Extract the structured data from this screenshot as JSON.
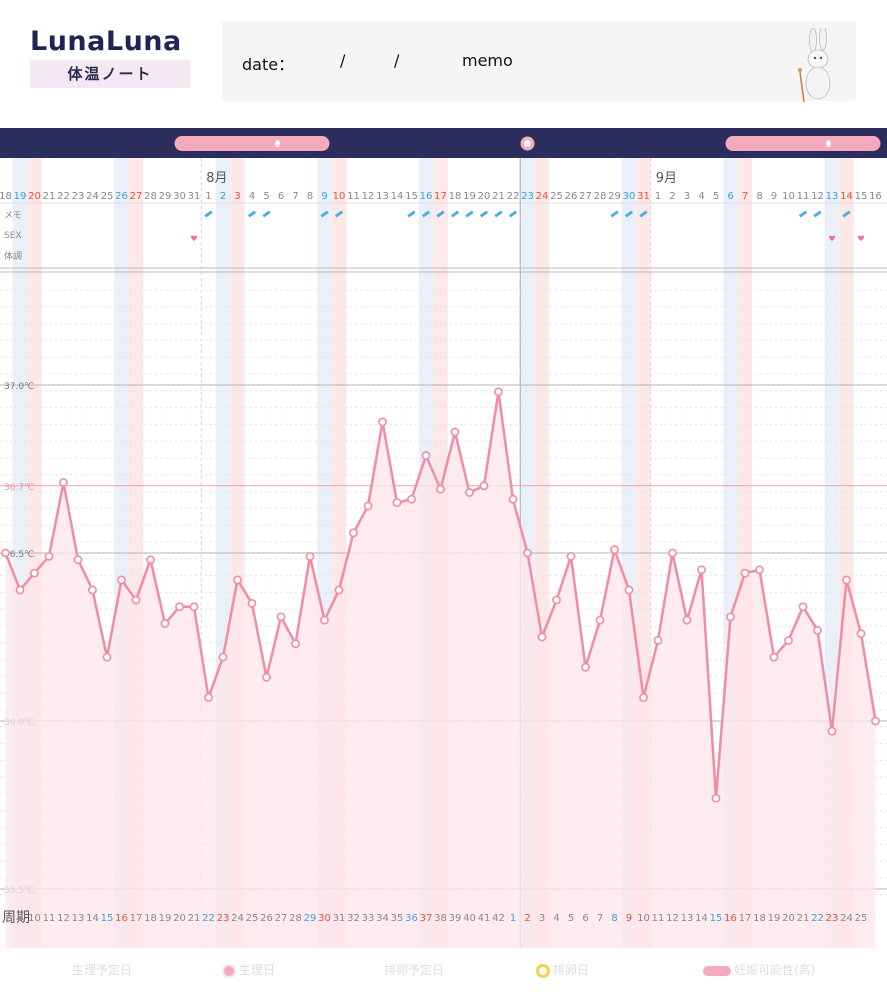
{
  "header": {
    "logo": "LunaLuna",
    "subtitle": "体温ノート",
    "date_label": "date：",
    "slash1": "/",
    "slash2": "/",
    "memo_label": "memo"
  },
  "colors": {
    "navy": "#2b2d5c",
    "line": "#f08ca4",
    "fill": "#ffe6eb",
    "blue_band": "#eaf0fa",
    "pink_band": "#fde8e8",
    "period_pill": "#f5a9bc",
    "blue_text": "#3aa0d8",
    "red_text": "#e0533a",
    "gray_text": "#888888",
    "memo_icon": "#4ab0e0",
    "heart": "#f06e96"
  },
  "chart_data": {
    "type": "line",
    "months": [
      "8月",
      "9月"
    ],
    "dates": [
      "18",
      "19",
      "20",
      "21",
      "22",
      "23",
      "24",
      "25",
      "26",
      "27",
      "28",
      "29",
      "30",
      "31",
      "1",
      "2",
      "3",
      "4",
      "5",
      "6",
      "7",
      "8",
      "9",
      "10",
      "11",
      "12",
      "13",
      "14",
      "15",
      "16",
      "17",
      "18",
      "19",
      "20",
      "21",
      "22",
      "23",
      "24",
      "25",
      "26",
      "27",
      "28",
      "29",
      "30",
      "31",
      "1",
      "2",
      "3",
      "4",
      "5",
      "6",
      "7",
      "8",
      "9",
      "10",
      "11",
      "12",
      "13",
      "14",
      "15",
      "16"
    ],
    "date_colors": [
      "g",
      "b",
      "r",
      "g",
      "g",
      "g",
      "g",
      "g",
      "b",
      "r",
      "g",
      "g",
      "g",
      "g",
      "g",
      "b",
      "r",
      "g",
      "g",
      "g",
      "g",
      "g",
      "b",
      "r",
      "g",
      "g",
      "g",
      "g",
      "g",
      "b",
      "r",
      "g",
      "g",
      "g",
      "g",
      "g",
      "b",
      "r",
      "g",
      "g",
      "g",
      "g",
      "g",
      "b",
      "r",
      "g",
      "g",
      "g",
      "g",
      "g",
      "b",
      "r",
      "g",
      "g",
      "g",
      "g",
      "g",
      "b",
      "r",
      "g",
      "g"
    ],
    "cycle_label": "周期",
    "cycle": [
      "",
      "9",
      "10",
      "11",
      "12",
      "13",
      "14",
      "15",
      "16",
      "17",
      "18",
      "19",
      "20",
      "21",
      "22",
      "23",
      "24",
      "25",
      "26",
      "27",
      "28",
      "29",
      "30",
      "31",
      "32",
      "33",
      "34",
      "35",
      "36",
      "37",
      "38",
      "39",
      "40",
      "41",
      "42",
      "1",
      "2",
      "3",
      "4",
      "5",
      "6",
      "7",
      "8",
      "9",
      "10",
      "11",
      "12",
      "13",
      "14",
      "15",
      "16",
      "17",
      "18",
      "19",
      "20",
      "21",
      "22",
      "23",
      "24",
      "25",
      ""
    ],
    "cycle_colors": [
      "g",
      "g",
      "g",
      "g",
      "g",
      "g",
      "g",
      "b",
      "r",
      "g",
      "g",
      "g",
      "g",
      "g",
      "b",
      "r",
      "g",
      "g",
      "g",
      "g",
      "g",
      "b",
      "r",
      "g",
      "g",
      "g",
      "g",
      "g",
      "b",
      "r",
      "g",
      "g",
      "g",
      "g",
      "g",
      "b",
      "r",
      "g",
      "g",
      "g",
      "g",
      "g",
      "b",
      "r",
      "g",
      "g",
      "g",
      "g",
      "g",
      "b",
      "r",
      "g",
      "g",
      "g",
      "g",
      "g",
      "b",
      "r",
      "g",
      "g",
      "g"
    ],
    "values": [
      36.5,
      36.39,
      36.44,
      36.49,
      36.71,
      36.48,
      36.39,
      36.19,
      36.42,
      36.36,
      36.48,
      36.29,
      36.34,
      36.34,
      36.07,
      36.19,
      36.42,
      36.35,
      36.13,
      36.31,
      36.23,
      36.49,
      36.3,
      36.39,
      36.56,
      36.64,
      36.89,
      36.65,
      36.66,
      36.79,
      36.69,
      36.86,
      36.68,
      36.7,
      36.98,
      36.66,
      36.5,
      36.25,
      36.36,
      36.49,
      36.16,
      36.3,
      36.51,
      36.39,
      36.07,
      36.24,
      36.5,
      36.3,
      36.45,
      35.77,
      36.31,
      36.44,
      36.45,
      36.19,
      36.24,
      36.34,
      36.27,
      35.97,
      36.42,
      36.26,
      36.0
    ],
    "y_ticks": [
      {
        "value": 37.0,
        "label": "37.0℃"
      },
      {
        "value": 36.7,
        "label": "36.7℃"
      },
      {
        "value": 36.5,
        "label": "36.5℃"
      },
      {
        "value": 36.0,
        "label": "36.0℃"
      },
      {
        "value": 35.5,
        "label": "35.5℃"
      }
    ],
    "ylim": [
      35.5,
      37.0
    ],
    "row_labels": [
      "メモ",
      "SEX",
      "体調"
    ],
    "memo_days": [
      14,
      17,
      18,
      22,
      23,
      28,
      29,
      30,
      31,
      32,
      33,
      34,
      35,
      42,
      43,
      44,
      55,
      56,
      58
    ],
    "sex_days": [
      13,
      57,
      59
    ],
    "period_pills": [
      [
        12,
        22
      ],
      [
        50,
        60
      ]
    ],
    "period_mark_day": 36
  },
  "legend": [
    {
      "label": "生理予定日",
      "swatch": "none"
    },
    {
      "label": "生理日",
      "swatch": "moon"
    },
    {
      "label": "排卵予定日",
      "swatch": "none"
    },
    {
      "label": "排卵日",
      "swatch": "ring"
    },
    {
      "label": "妊娠可能性(高)",
      "swatch": "pill"
    }
  ]
}
